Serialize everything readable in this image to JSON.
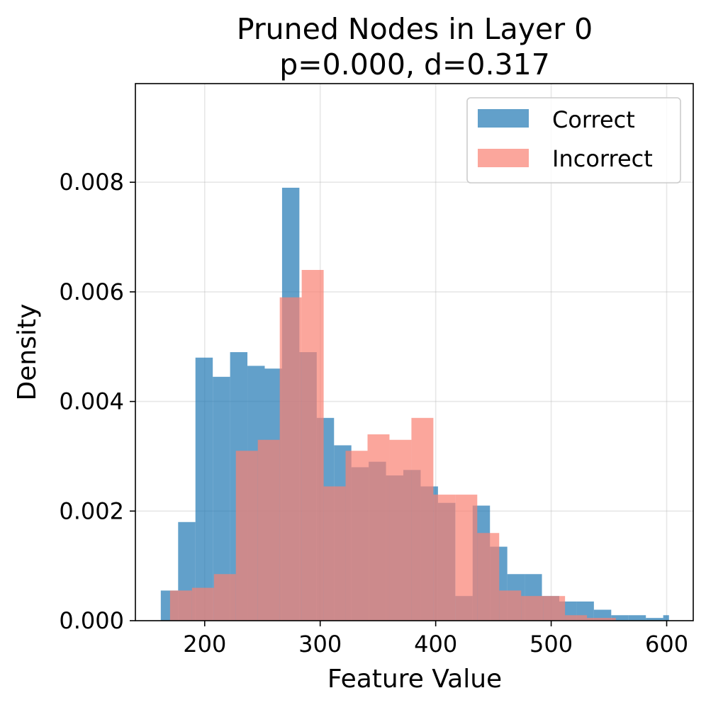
{
  "chart_data": {
    "type": "histogram",
    "title": "Pruned Nodes in Layer 0",
    "subtitle": "p=0.000, d=0.317",
    "xlabel": "Feature Value",
    "ylabel": "Density",
    "xlim": [
      140,
      623
    ],
    "ylim": [
      0,
      0.0098
    ],
    "xticks": [
      200,
      300,
      400,
      500,
      600
    ],
    "yticks": [
      0.0,
      0.002,
      0.004,
      0.006,
      0.008
    ],
    "xtick_labels": [
      "200",
      "300",
      "400",
      "500",
      "600"
    ],
    "ytick_labels": [
      "0.000",
      "0.002",
      "0.004",
      "0.006",
      "0.008"
    ],
    "grid": true,
    "legend_position": "top-right",
    "series": [
      {
        "name": "Correct",
        "color": "#1f77b4",
        "opacity": 0.7,
        "bin_edges": [
          162,
          177,
          192,
          207,
          222,
          237,
          252,
          267,
          282,
          297,
          312,
          327,
          342,
          357,
          372,
          387,
          402,
          417,
          432,
          447,
          462,
          477,
          492,
          507,
          522,
          537,
          552,
          567,
          582,
          597,
          602
        ],
        "values": [
          0.00055,
          0.0018,
          0.0048,
          0.00445,
          0.0049,
          0.00465,
          0.0046,
          0.0079,
          0.0049,
          0.0037,
          0.0032,
          0.0028,
          0.0029,
          0.00265,
          0.00275,
          0.00245,
          0.00215,
          0.00045,
          0.0021,
          0.00135,
          0.00085,
          0.00085,
          0.00045,
          0.00035,
          0.00035,
          0.0002,
          0.0001,
          0.0001,
          5e-05,
          0.0001
        ]
      },
      {
        "name": "Incorrect",
        "color": "#fa8072",
        "opacity": 0.7,
        "bin_edges": [
          170,
          189,
          208,
          227,
          246,
          265,
          284,
          303,
          322,
          341,
          360,
          379,
          398,
          417,
          436,
          455,
          474,
          493,
          512,
          531,
          550,
          556
        ],
        "values": [
          0.00055,
          0.0006,
          0.00085,
          0.0031,
          0.0033,
          0.0059,
          0.0064,
          0.00245,
          0.0031,
          0.0034,
          0.0033,
          0.0037,
          0.0023,
          0.0023,
          0.0016,
          0.00055,
          0.00045,
          0.00045,
          0.0001,
          5e-05,
          5e-05
        ]
      }
    ]
  }
}
